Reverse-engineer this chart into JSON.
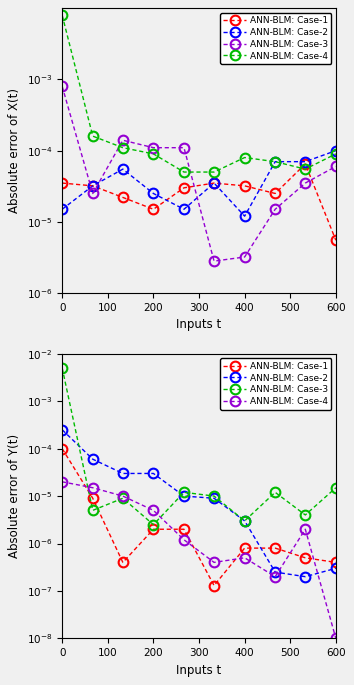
{
  "plot1": {
    "ylabel": "Absolute error of X(t)",
    "xlabel": "Inputs t",
    "ylim": [
      1e-06,
      0.01
    ],
    "xlim": [
      0,
      600
    ],
    "xticks": [
      0,
      100,
      200,
      300,
      400,
      500,
      600
    ],
    "yticks_log": [
      -6,
      -5,
      -4,
      -3
    ],
    "series": [
      {
        "label": "ANN-BLM: Case-1",
        "color": "#ff0000",
        "x": [
          0,
          67,
          133,
          200,
          267,
          333,
          400,
          467,
          533,
          600
        ],
        "y": [
          3.5e-05,
          3.2e-05,
          2.2e-05,
          1.5e-05,
          3e-05,
          3.5e-05,
          3.2e-05,
          2.5e-05,
          6.5e-05,
          5.5e-06
        ]
      },
      {
        "label": "ANN-BLM: Case-2",
        "color": "#0000ff",
        "x": [
          0,
          67,
          133,
          200,
          267,
          333,
          400,
          467,
          533,
          600
        ],
        "y": [
          1.5e-05,
          3.2e-05,
          5.5e-05,
          2.5e-05,
          1.5e-05,
          3.5e-05,
          1.2e-05,
          7e-05,
          7e-05,
          0.0001
        ]
      },
      {
        "label": "ANN-BLM: Case-3",
        "color": "#9400D3",
        "x": [
          0,
          67,
          133,
          200,
          267,
          333,
          400,
          467,
          533,
          600
        ],
        "y": [
          0.0008,
          2.5e-05,
          0.00014,
          0.00011,
          0.00011,
          2.8e-06,
          3.2e-06,
          1.5e-05,
          3.5e-05,
          6e-05
        ]
      },
      {
        "label": "ANN-BLM: Case-4",
        "color": "#00bb00",
        "x": [
          0,
          67,
          133,
          200,
          267,
          333,
          400,
          467,
          533,
          600
        ],
        "y": [
          0.008,
          0.00016,
          0.00011,
          9e-05,
          5e-05,
          5e-05,
          8e-05,
          7e-05,
          5.5e-05,
          9e-05
        ]
      }
    ]
  },
  "plot2": {
    "ylabel": "Absolute error of Y(t)",
    "xlabel": "Inputs t",
    "ylim": [
      1e-08,
      0.01
    ],
    "xlim": [
      0,
      600
    ],
    "xticks": [
      0,
      100,
      200,
      300,
      400,
      500,
      600
    ],
    "yticks_log": [
      -8,
      -7,
      -6,
      -5,
      -4,
      -3,
      -2
    ],
    "series": [
      {
        "label": "ANN-BLM: Case-1",
        "color": "#ff0000",
        "x": [
          0,
          67,
          133,
          200,
          267,
          333,
          400,
          467,
          533,
          600
        ],
        "y": [
          0.0001,
          9e-06,
          4e-07,
          2e-06,
          2e-06,
          1.3e-07,
          8e-07,
          8e-07,
          5e-07,
          4e-07
        ]
      },
      {
        "label": "ANN-BLM: Case-2",
        "color": "#0000ff",
        "x": [
          0,
          67,
          133,
          200,
          267,
          333,
          400,
          467,
          533,
          600
        ],
        "y": [
          0.00025,
          6e-05,
          3e-05,
          3e-05,
          1e-05,
          9e-06,
          3e-06,
          2.5e-07,
          2e-07,
          3e-07
        ]
      },
      {
        "label": "ANN-BLM: Case-3",
        "color": "#00bb00",
        "x": [
          0,
          67,
          133,
          200,
          267,
          333,
          400,
          467,
          533,
          600
        ],
        "y": [
          0.005,
          5e-06,
          9e-06,
          2.5e-06,
          1.2e-05,
          1e-05,
          3e-06,
          1.2e-05,
          4e-06,
          1.5e-05
        ]
      },
      {
        "label": "ANN-BLM: Case-4",
        "color": "#9400D3",
        "x": [
          0,
          67,
          133,
          200,
          267,
          333,
          400,
          467,
          533,
          600
        ],
        "y": [
          2e-05,
          1.5e-05,
          1e-05,
          5e-06,
          1.2e-06,
          4e-07,
          5e-07,
          2e-07,
          2e-06,
          1e-08
        ]
      }
    ]
  },
  "bg_color": "#f0f0f0",
  "legend_fontsize": 6.5,
  "axis_fontsize": 8.5,
  "tick_fontsize": 7.5,
  "marker_size": 7,
  "linewidth": 1.0
}
